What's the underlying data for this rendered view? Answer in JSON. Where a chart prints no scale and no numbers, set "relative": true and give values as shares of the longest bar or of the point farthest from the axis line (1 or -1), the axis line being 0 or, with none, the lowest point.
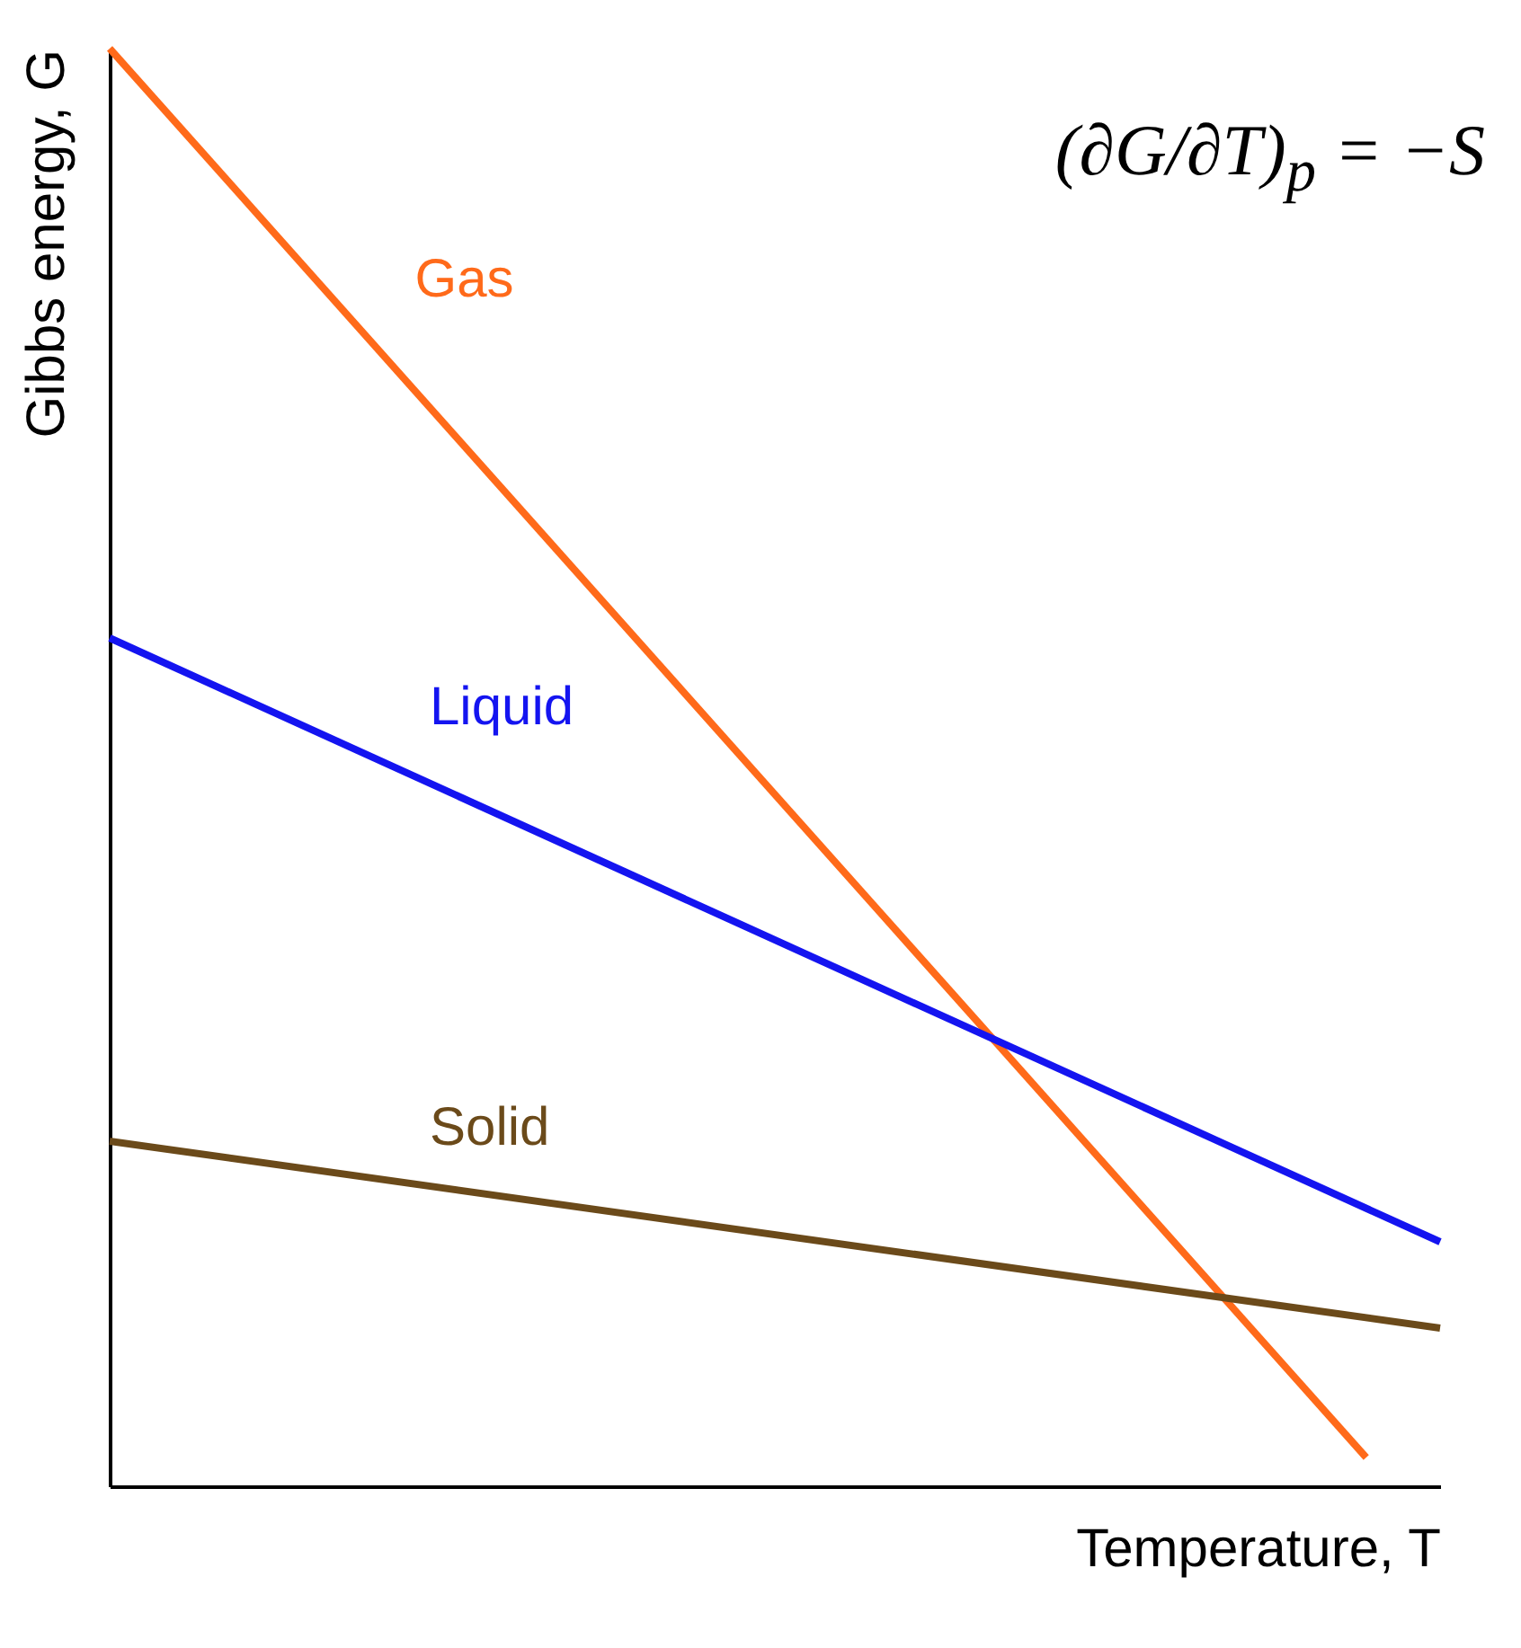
{
  "chart_data": {
    "type": "line",
    "relative": true,
    "xlabel": "Temperature, T",
    "ylabel": "Gibbs energy, G",
    "tick_labels": false,
    "grid": false,
    "legend": false,
    "marker": "none",
    "line_style": "solid",
    "annotations": [
      "(∂G/∂T)$_{p}$ = −S"
    ],
    "categories": [
      null,
      null,
      null,
      null,
      null,
      null,
      null,
      null,
      null,
      null,
      null,
      null,
      null,
      null,
      null,
      null,
      null,
      null,
      null
    ],
    "series": [
      {
        "name": "Gas",
        "color": "#ff6a1a",
        "values": [
          1,
          null,
          null,
          null,
          null,
          null,
          null,
          null,
          null,
          null,
          null,
          null,
          null,
          null,
          null,
          null,
          null,
          0.02,
          null
        ]
      },
      {
        "name": "Liquid",
        "color": "#1414f0",
        "values": [
          0.59,
          null,
          null,
          null,
          null,
          null,
          null,
          null,
          null,
          null,
          null,
          null,
          null,
          null,
          null,
          null,
          null,
          null,
          0.17
        ]
      },
      {
        "name": "Solid",
        "color": "#6b4a1a",
        "values": [
          0.24,
          null,
          null,
          null,
          null,
          null,
          null,
          null,
          null,
          null,
          null,
          null,
          null,
          null,
          null,
          null,
          null,
          null,
          0.11
        ]
      }
    ]
  }
}
